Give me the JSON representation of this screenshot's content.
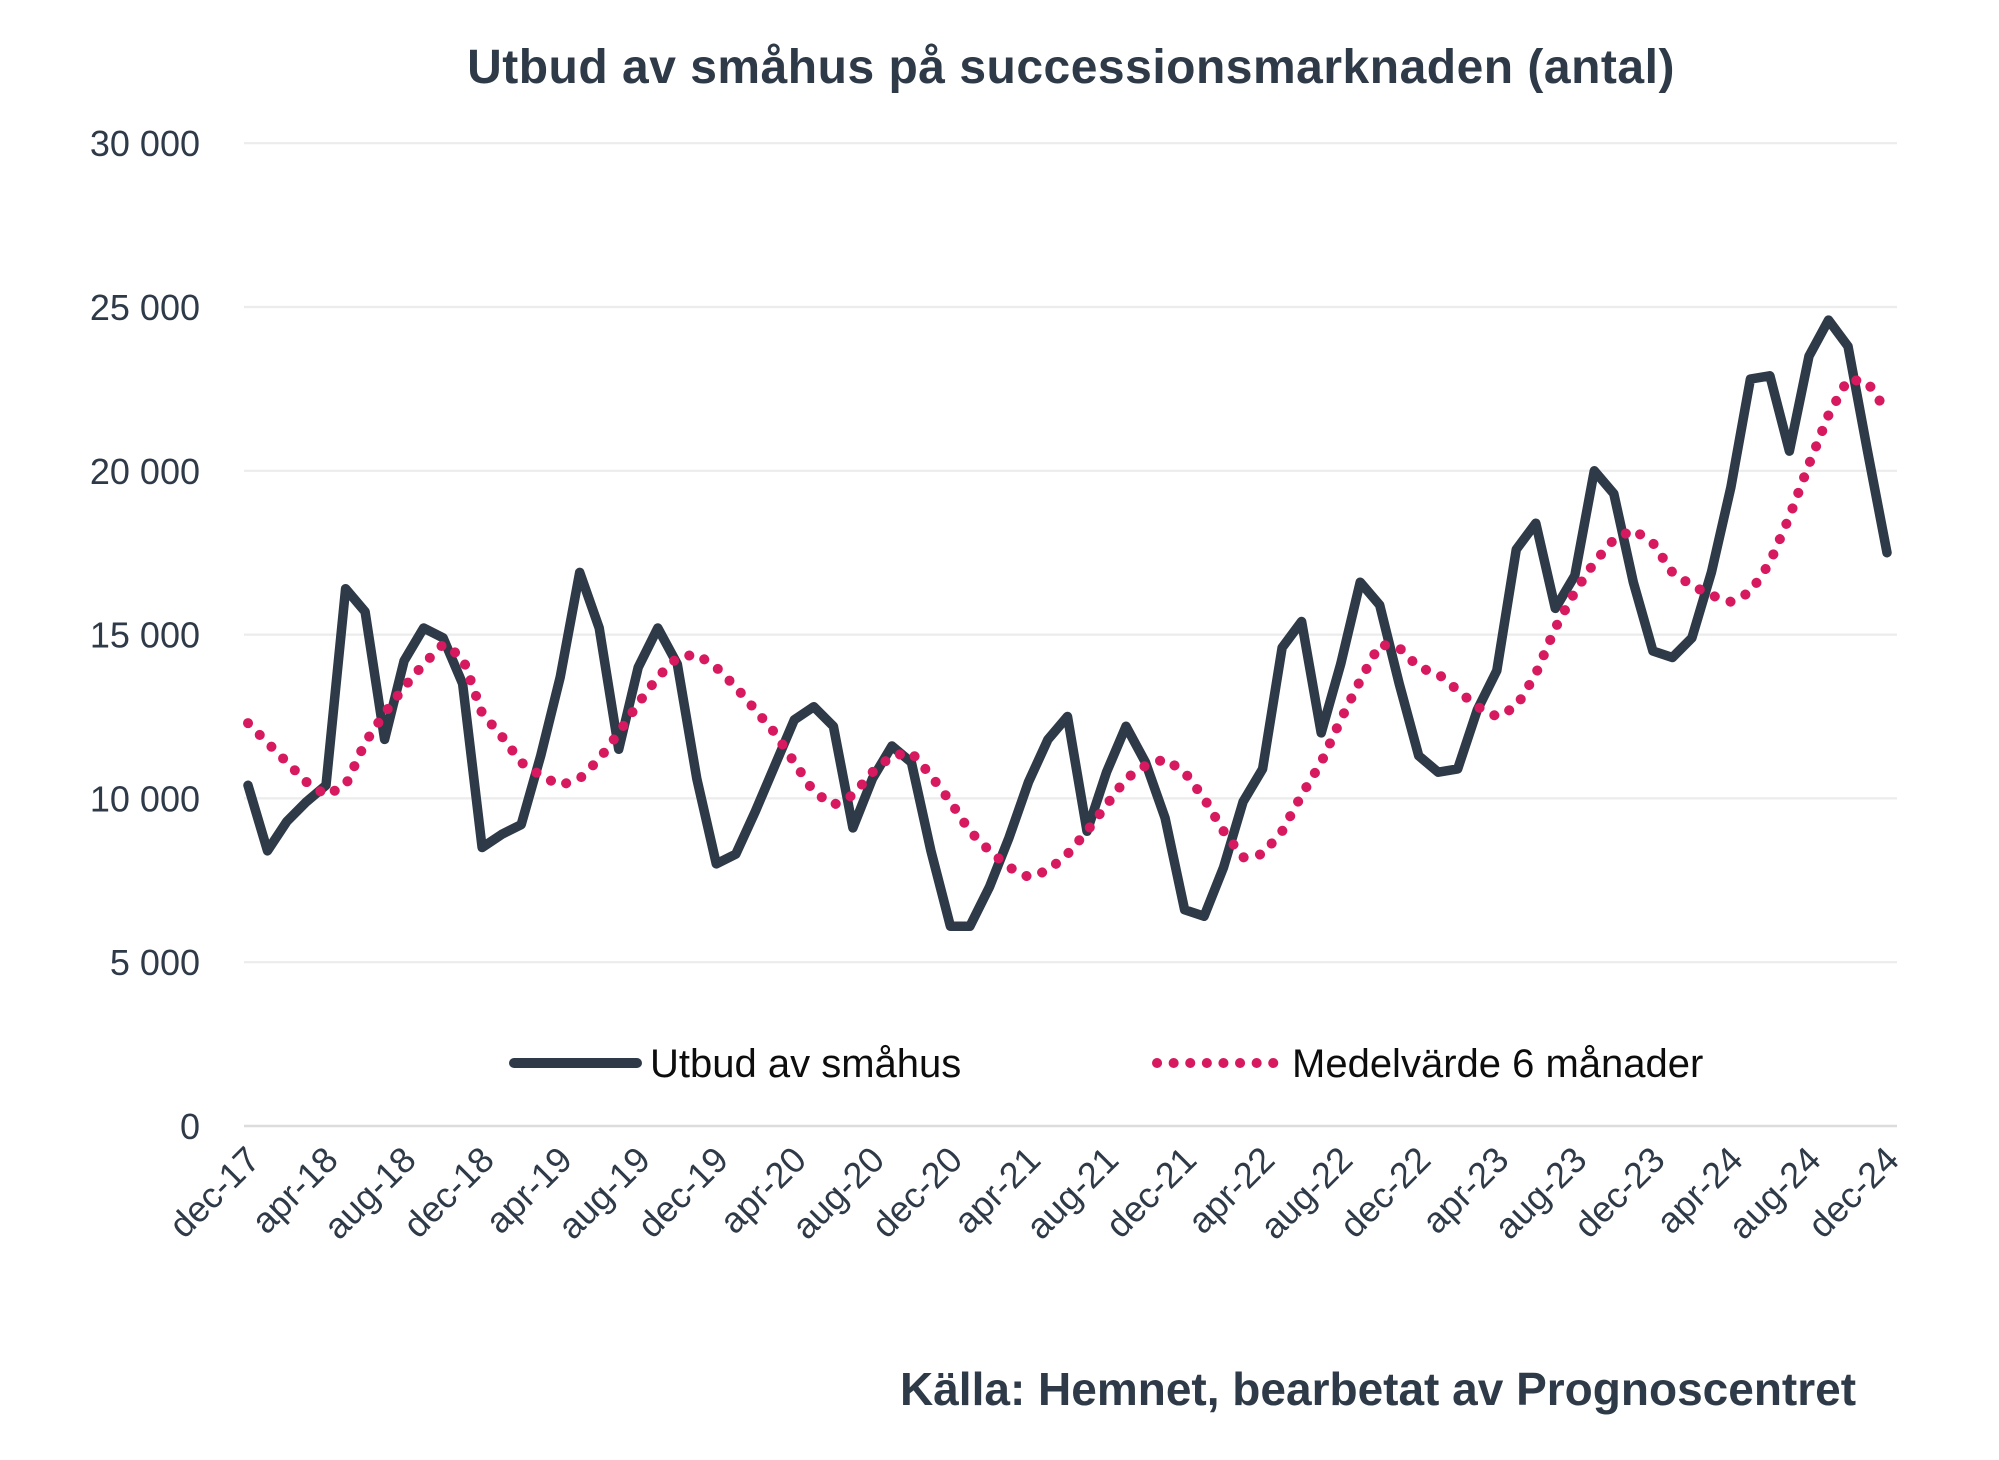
{
  "page": {
    "background": "#ffffff"
  },
  "source": {
    "text": "Källa: Hemnet, bearbetat av Prognoscentret"
  },
  "chart_data": {
    "type": "line",
    "title": "Utbud av småhus på successionsmarknaden (antal)",
    "xlabel": "",
    "ylabel": "",
    "ylim": [
      0,
      30000
    ],
    "grid": "horizontal",
    "legend_position": "bottom-inside",
    "y_tick_values": [
      0,
      5000,
      10000,
      15000,
      20000,
      25000,
      30000
    ],
    "y_tick_labels": [
      "0",
      "5 000",
      "10 000",
      "15 000",
      "20 000",
      "25 000",
      "30 000"
    ],
    "x_tick_every": 4,
    "x_tick_labels": [
      "dec-17",
      "apr-18",
      "aug-18",
      "dec-18",
      "apr-19",
      "aug-19",
      "dec-19",
      "apr-20",
      "aug-20",
      "dec-20",
      "apr-21",
      "aug-21",
      "dec-21",
      "apr-22",
      "aug-22",
      "dec-22",
      "apr-23",
      "aug-23",
      "dec-23",
      "apr-24",
      "aug-24",
      "dec-24"
    ],
    "n_points": 85,
    "series": [
      {
        "name": "Utbud av småhus",
        "style": "solid",
        "color": "#2e3a48",
        "values": [
          10400,
          8400,
          9300,
          9900,
          10400,
          16400,
          15700,
          11800,
          14200,
          15200,
          14900,
          13500,
          8500,
          8900,
          9200,
          11300,
          13700,
          16900,
          15200,
          11500,
          14000,
          15200,
          14100,
          10600,
          8000,
          8300,
          9600,
          11000,
          12400,
          12800,
          12200,
          9100,
          10600,
          11600,
          11100,
          8400,
          6100,
          6100,
          7300,
          8800,
          10500,
          11800,
          12500,
          9000,
          10800,
          12200,
          11100,
          9400,
          6600,
          6400,
          7900,
          9900,
          10900,
          14600,
          15400,
          12000,
          14100,
          16600,
          15900,
          13500,
          11300,
          10800,
          10900,
          12700,
          13900,
          17600,
          18400,
          15800,
          16800,
          20000,
          19300,
          16600,
          14500,
          14300,
          14900,
          16900,
          19500,
          22800,
          22900,
          20600,
          23500,
          24600,
          23800,
          20600,
          17500
        ]
      },
      {
        "name": "Medelvärde 6 månader",
        "style": "dotted",
        "color": "#d7195f",
        "values": [
          12300,
          11700,
          11100,
          10500,
          10100,
          10400,
          11700,
          12600,
          13400,
          14100,
          14700,
          14300,
          12600,
          11900,
          11100,
          10700,
          10400,
          10600,
          11200,
          12000,
          12900,
          13700,
          14300,
          14400,
          14000,
          13400,
          12700,
          12000,
          11100,
          10200,
          9800,
          10100,
          10800,
          11300,
          11400,
          10700,
          9900,
          9000,
          8400,
          7900,
          7600,
          7800,
          8300,
          9000,
          9800,
          10600,
          11000,
          11200,
          10800,
          10000,
          9000,
          8200,
          8300,
          9000,
          10100,
          11100,
          12400,
          13600,
          14700,
          14600,
          14000,
          13800,
          13300,
          12800,
          12500,
          12800,
          13800,
          15200,
          16300,
          17200,
          17900,
          18200,
          17800,
          16900,
          16500,
          16200,
          16000,
          16300,
          17200,
          18600,
          20200,
          21700,
          22800,
          22700,
          21800
        ]
      }
    ]
  }
}
